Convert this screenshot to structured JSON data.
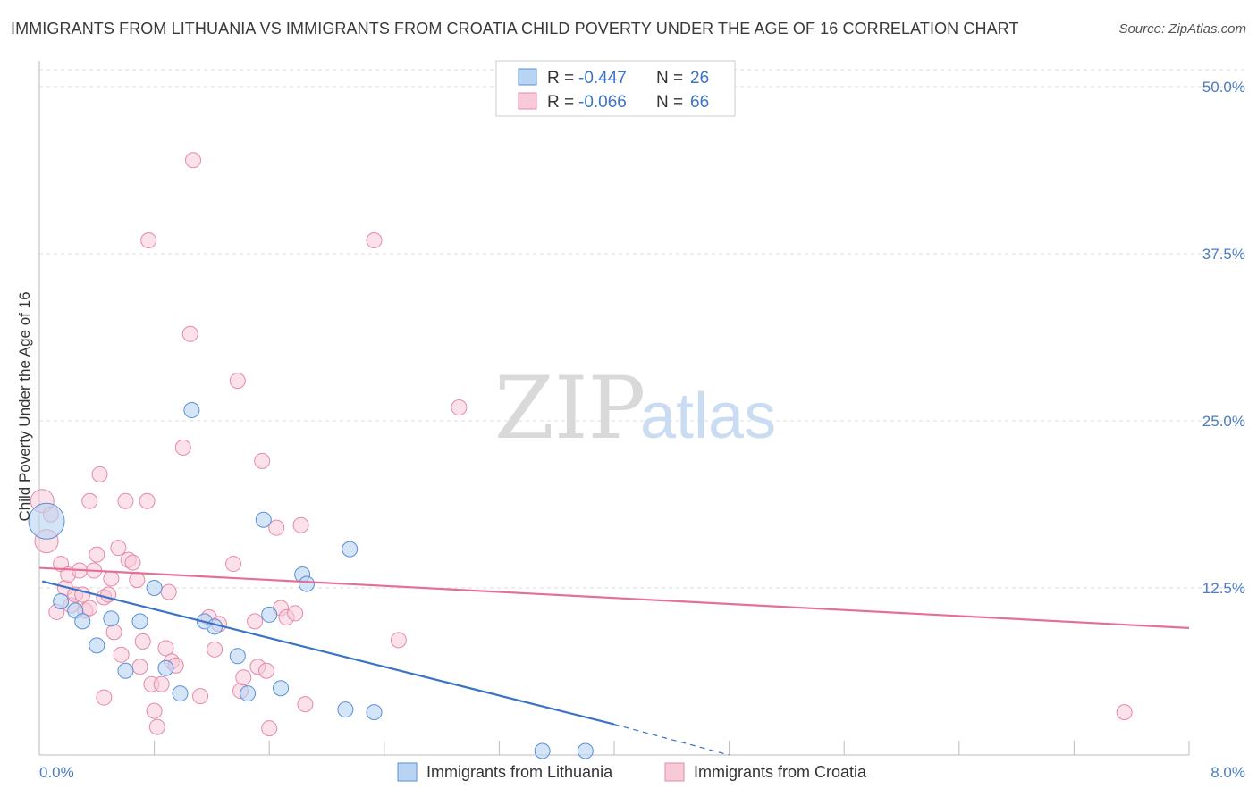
{
  "header": {
    "title": "IMMIGRANTS FROM LITHUANIA VS IMMIGRANTS FROM CROATIA CHILD POVERTY UNDER THE AGE OF 16 CORRELATION CHART",
    "source": "Source: ZipAtlas.com"
  },
  "watermark": {
    "zip": "ZIP",
    "atlas": "atlas"
  },
  "colors": {
    "lithuania_fill": "#b9d3f3",
    "lithuania_stroke": "#5b8fd6",
    "lithuania_line": "#3b73c6",
    "croatia_fill": "#f8c9d7",
    "croatia_stroke": "#e58aa7",
    "croatia_line": "#e56f97",
    "grid": "#dddddd",
    "tick_label": "#4a7cc2"
  },
  "legend": {
    "rows": [
      {
        "r_label": "R =",
        "r_value": "-0.447",
        "n_label": "N =",
        "n_value": "26",
        "series": "lithuania"
      },
      {
        "r_label": "R =",
        "r_value": "-0.066",
        "n_label": "N =",
        "n_value": "66",
        "series": "croatia"
      }
    ]
  },
  "chart_data": {
    "type": "scatter",
    "title": "IMMIGRANTS FROM LITHUANIA VS IMMIGRANTS FROM CROATIA CHILD POVERTY UNDER THE AGE OF 16 CORRELATION CHART",
    "xlabel": "",
    "ylabel": "Child Poverty Under the Age of 16",
    "xlim": [
      0,
      8
    ],
    "ylim": [
      0,
      50
    ],
    "x_tick_labels": [
      "0.0%",
      "8.0%"
    ],
    "y_ticks": [
      12.5,
      25.0,
      37.5,
      50.0
    ],
    "y_tick_labels": [
      "12.5%",
      "25.0%",
      "37.5%",
      "50.0%"
    ],
    "legend_position": "top-center",
    "series": [
      {
        "name": "Immigrants from Lithuania",
        "points": [
          [
            0.05,
            17.5
          ],
          [
            0.15,
            11.5
          ],
          [
            0.25,
            10.8
          ],
          [
            0.3,
            10.0
          ],
          [
            0.4,
            8.2
          ],
          [
            0.5,
            10.2
          ],
          [
            0.6,
            6.3
          ],
          [
            0.7,
            10.0
          ],
          [
            0.8,
            12.5
          ],
          [
            0.88,
            6.5
          ],
          [
            0.98,
            4.6
          ],
          [
            1.06,
            25.8
          ],
          [
            1.15,
            10.0
          ],
          [
            1.22,
            9.6
          ],
          [
            1.38,
            7.4
          ],
          [
            1.45,
            4.6
          ],
          [
            1.56,
            17.6
          ],
          [
            1.6,
            10.5
          ],
          [
            1.68,
            5.0
          ],
          [
            1.83,
            13.5
          ],
          [
            1.86,
            12.8
          ],
          [
            2.13,
            3.4
          ],
          [
            2.16,
            15.4
          ],
          [
            2.33,
            3.2
          ],
          [
            3.5,
            0.3
          ],
          [
            3.8,
            0.3
          ]
        ],
        "trend": {
          "x0": 0.02,
          "y0": 13.0,
          "x1": 4.0,
          "y1": 2.3,
          "dash_x1": 4.8,
          "dash_y1": 0.0
        }
      },
      {
        "name": "Immigrants from Croatia",
        "points": [
          [
            0.02,
            19.0
          ],
          [
            0.05,
            16.0
          ],
          [
            0.08,
            18.0
          ],
          [
            0.12,
            10.7
          ],
          [
            0.15,
            14.3
          ],
          [
            0.18,
            12.5
          ],
          [
            0.2,
            13.5
          ],
          [
            0.22,
            11.2
          ],
          [
            0.25,
            12.0
          ],
          [
            0.28,
            13.8
          ],
          [
            0.3,
            12.0
          ],
          [
            0.32,
            10.8
          ],
          [
            0.35,
            19.0
          ],
          [
            0.38,
            13.8
          ],
          [
            0.4,
            15.0
          ],
          [
            0.42,
            21.0
          ],
          [
            0.45,
            11.8
          ],
          [
            0.45,
            4.3
          ],
          [
            0.48,
            12.0
          ],
          [
            0.5,
            13.2
          ],
          [
            0.52,
            9.2
          ],
          [
            0.55,
            15.5
          ],
          [
            0.57,
            7.5
          ],
          [
            0.6,
            19.0
          ],
          [
            0.62,
            14.6
          ],
          [
            0.65,
            14.4
          ],
          [
            0.68,
            13.1
          ],
          [
            0.7,
            6.6
          ],
          [
            0.72,
            8.5
          ],
          [
            0.75,
            19.0
          ],
          [
            0.78,
            5.3
          ],
          [
            0.8,
            3.3
          ],
          [
            0.82,
            2.1
          ],
          [
            0.85,
            5.3
          ],
          [
            0.88,
            8.0
          ],
          [
            0.92,
            7.0
          ],
          [
            0.95,
            6.7
          ],
          [
            1.0,
            23.0
          ],
          [
            1.05,
            31.5
          ],
          [
            1.07,
            44.5
          ],
          [
            1.12,
            4.4
          ],
          [
            1.18,
            10.3
          ],
          [
            1.22,
            7.9
          ],
          [
            1.25,
            9.8
          ],
          [
            1.35,
            14.3
          ],
          [
            1.38,
            28.0
          ],
          [
            1.4,
            4.8
          ],
          [
            1.42,
            5.8
          ],
          [
            1.52,
            6.6
          ],
          [
            1.55,
            22.0
          ],
          [
            1.58,
            6.3
          ],
          [
            1.6,
            2.0
          ],
          [
            1.65,
            17.0
          ],
          [
            1.68,
            11.0
          ],
          [
            1.72,
            10.3
          ],
          [
            1.78,
            10.6
          ],
          [
            1.82,
            17.2
          ],
          [
            1.85,
            3.8
          ],
          [
            0.76,
            38.5
          ],
          [
            2.33,
            38.5
          ],
          [
            2.5,
            8.6
          ],
          [
            2.92,
            26.0
          ],
          [
            7.55,
            3.2
          ],
          [
            1.5,
            10.0
          ],
          [
            0.35,
            11.0
          ],
          [
            0.9,
            12.2
          ]
        ],
        "trend": {
          "x0": 0.0,
          "y0": 14.0,
          "x1": 8.0,
          "y1": 9.5
        }
      }
    ]
  },
  "bottom_legend": [
    {
      "label": "Immigrants from Lithuania",
      "series": "lithuania"
    },
    {
      "label": "Immigrants from Croatia",
      "series": "croatia"
    }
  ]
}
